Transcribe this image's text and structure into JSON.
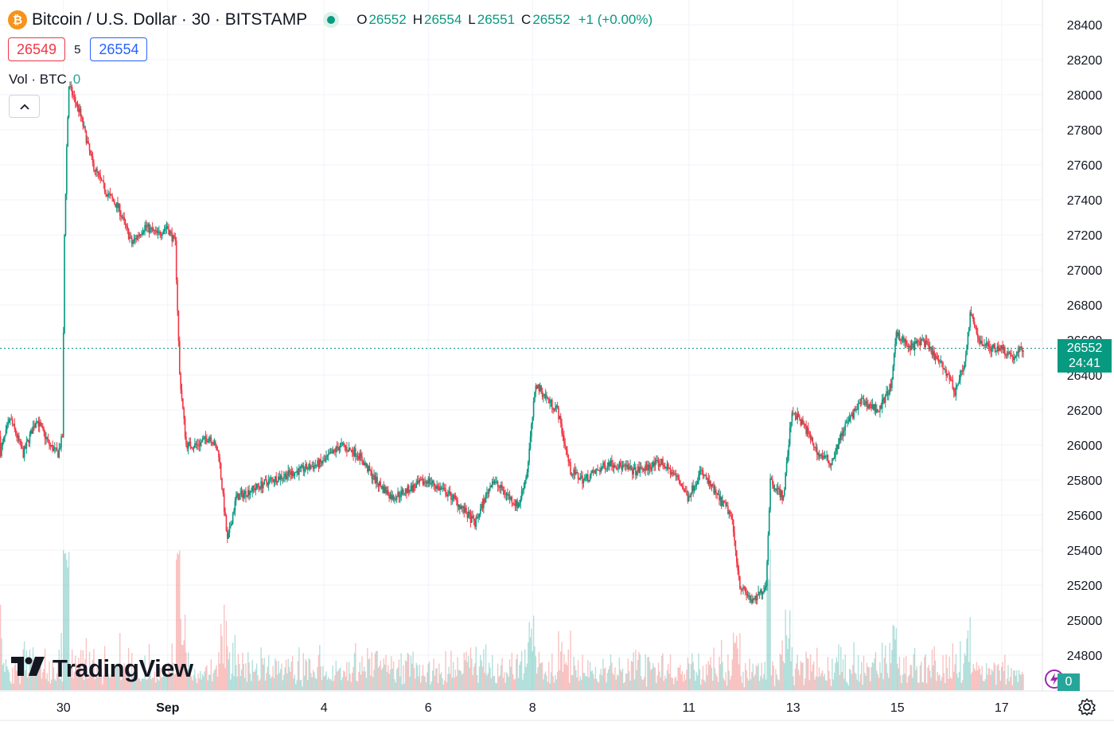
{
  "header": {
    "symbol_title": "Bitcoin / U.S. Dollar · 30 · BITSTAMP",
    "coin_icon": "bitcoin-icon",
    "open_label": "O",
    "open": "26552",
    "high_label": "H",
    "high": "26554",
    "low_label": "L",
    "low": "26551",
    "close_label": "C",
    "close": "26552",
    "change": "+1 (+0.00%)"
  },
  "trade": {
    "bid": "26549",
    "spread": "5",
    "ask": "26554"
  },
  "volume_legend": {
    "label": "Vol · BTC",
    "value": "0"
  },
  "collapse_icon": "chevron-up-icon",
  "logo_text": "TradingView",
  "last_price": {
    "price": "26552",
    "countdown": "24:41"
  },
  "volume_tag": "0",
  "colors": {
    "up": "#089981",
    "down": "#f23645",
    "vol_up": "#26a69a",
    "vol_down": "#ef5350",
    "grid": "#f0f3fa"
  },
  "chart_data": {
    "type": "candlestick",
    "title": "Bitcoin / U.S. Dollar · 30 · BITSTAMP",
    "ylim": [
      24700,
      28500
    ],
    "y_ticks": [
      24800,
      25000,
      25200,
      25400,
      25600,
      25800,
      26000,
      26200,
      26400,
      26600,
      26800,
      27000,
      27200,
      27400,
      27600,
      27800,
      28000,
      28200,
      28400
    ],
    "x_ticks": [
      "8",
      "30",
      "Sep",
      "4",
      "6",
      "8",
      "11",
      "13",
      "15",
      "17"
    ],
    "last_price_line": 26552,
    "grid": true,
    "price_path": [
      [
        "Aug 28 12:00",
        26050
      ],
      [
        "Aug 28 18:00",
        25900
      ],
      [
        "Aug 29 00:00",
        26150
      ],
      [
        "Aug 29 06:00",
        25950
      ],
      [
        "Aug 29 12:00",
        26150
      ],
      [
        "Aug 29 18:00",
        26000
      ],
      [
        "Aug 29 22:00",
        25950
      ],
      [
        "Aug 30 00:00",
        26050
      ],
      [
        "Aug 30 01:00",
        27200
      ],
      [
        "Aug 30 02:00",
        27700
      ],
      [
        "Aug 30 03:00",
        28050
      ],
      [
        "Aug 30 08:00",
        27900
      ],
      [
        "Aug 30 14:00",
        27600
      ],
      [
        "Aug 30 20:00",
        27450
      ],
      [
        "Aug 31 02:00",
        27350
      ],
      [
        "Aug 31 08:00",
        27150
      ],
      [
        "Aug 31 14:00",
        27250
      ],
      [
        "Aug 31 20:00",
        27200
      ],
      [
        "Sep 1 00:00",
        27250
      ],
      [
        "Sep 1 04:00",
        27150
      ],
      [
        "Sep 1 06:00",
        26400
      ],
      [
        "Sep 1 09:00",
        26000
      ],
      [
        "Sep 1 14:00",
        26000
      ],
      [
        "Sep 1 20:00",
        26050
      ],
      [
        "Sep 2 00:00",
        25950
      ],
      [
        "Sep 2 04:00",
        25450
      ],
      [
        "Sep 2 08:00",
        25700
      ],
      [
        "Sep 2 16:00",
        25750
      ],
      [
        "Sep 3 00:00",
        25800
      ],
      [
        "Sep 3 12:00",
        25850
      ],
      [
        "Sep 4 00:00",
        25900
      ],
      [
        "Sep 4 08:00",
        26000
      ],
      [
        "Sep 4 16:00",
        25950
      ],
      [
        "Sep 5 00:00",
        25800
      ],
      [
        "Sep 5 08:00",
        25700
      ],
      [
        "Sep 5 16:00",
        25750
      ],
      [
        "Sep 6 00:00",
        25800
      ],
      [
        "Sep 6 12:00",
        25700
      ],
      [
        "Sep 6 22:00",
        25550
      ],
      [
        "Sep 7 06:00",
        25800
      ],
      [
        "Sep 7 18:00",
        25650
      ],
      [
        "Sep 7 22:00",
        25850
      ],
      [
        "Sep 8 02:00",
        26350
      ],
      [
        "Sep 8 08:00",
        26250
      ],
      [
        "Sep 8 12:00",
        26200
      ],
      [
        "Sep 8 18:00",
        25850
      ],
      [
        "Sep 9 00:00",
        25800
      ],
      [
        "Sep 9 12:00",
        25900
      ],
      [
        "Sep 10 00:00",
        25850
      ],
      [
        "Sep 10 12:00",
        25900
      ],
      [
        "Sep 10 20:00",
        25800
      ],
      [
        "Sep 11 00:00",
        25700
      ],
      [
        "Sep 11 06:00",
        25850
      ],
      [
        "Sep 11 14:00",
        25700
      ],
      [
        "Sep 11 20:00",
        25600
      ],
      [
        "Sep 12 00:00",
        25200
      ],
      [
        "Sep 12 06:00",
        25100
      ],
      [
        "Sep 12 12:00",
        25200
      ],
      [
        "Sep 12 14:00",
        25800
      ],
      [
        "Sep 12 20:00",
        25700
      ],
      [
        "Sep 13 00:00",
        26200
      ],
      [
        "Sep 13 06:00",
        26100
      ],
      [
        "Sep 13 12:00",
        25950
      ],
      [
        "Sep 13 18:00",
        25900
      ],
      [
        "Sep 14 00:00",
        26100
      ],
      [
        "Sep 14 08:00",
        26250
      ],
      [
        "Sep 14 16:00",
        26200
      ],
      [
        "Sep 14 22:00",
        26350
      ],
      [
        "Sep 15 00:00",
        26650
      ],
      [
        "Sep 15 06:00",
        26550
      ],
      [
        "Sep 15 12:00",
        26600
      ],
      [
        "Sep 15 18:00",
        26500
      ],
      [
        "Sep 16 00:00",
        26400
      ],
      [
        "Sep 16 03:00",
        26300
      ],
      [
        "Sep 16 08:00",
        26500
      ],
      [
        "Sep 16 10:00",
        26750
      ],
      [
        "Sep 16 14:00",
        26600
      ],
      [
        "Sep 16 20:00",
        26550
      ],
      [
        "Sep 17 00:00",
        26560
      ],
      [
        "Sep 17 06:00",
        26500
      ],
      [
        "Sep 17 10:00",
        26552
      ]
    ]
  }
}
